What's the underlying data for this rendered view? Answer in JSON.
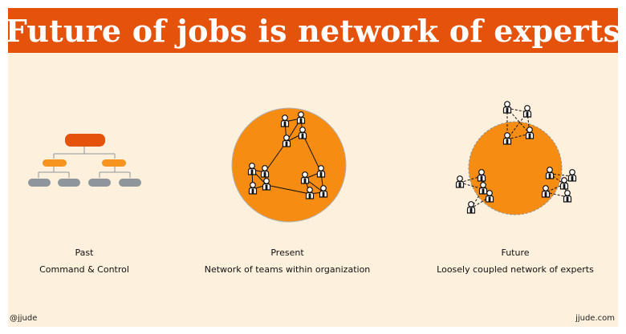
{
  "title": "Future of jobs is network of experts",
  "panels": [
    {
      "name": "Past",
      "description": "Command & Control"
    },
    {
      "name": "Present",
      "description": "Network of teams within organization"
    },
    {
      "name": "Future",
      "description": "Loosely coupled network of experts"
    }
  ],
  "credits": {
    "left": "@jjude",
    "right": "jjude.com"
  },
  "colors": {
    "title_bar": "#e4520c",
    "background": "#fdf0dc",
    "circle": "#f78c13",
    "org_top": "#e4520c",
    "org_middle": "#f7941d",
    "org_bottom": "#8e959b"
  },
  "icons": [
    "person-icon"
  ]
}
